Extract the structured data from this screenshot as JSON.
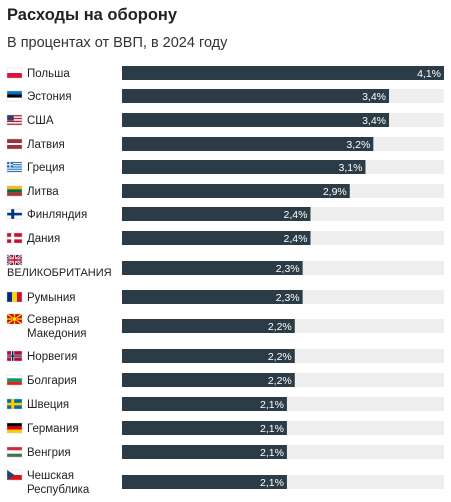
{
  "title": "Расходы на оборону",
  "subtitle": "В процентах от ВВП, в 2024 году",
  "chart_data": {
    "type": "bar",
    "orientation": "horizontal",
    "title": "Расходы на оборону",
    "subtitle": "В процентах от ВВП, в 2024 году",
    "xlim": [
      0,
      4.1
    ],
    "grid": false,
    "colors": {
      "bar": "#2b3c47",
      "track": "#eeeeee",
      "value_label": "#ffffff"
    },
    "categories": [
      "Польша",
      "Эстония",
      "США",
      "Латвия",
      "Греция",
      "Литва",
      "Финляндия",
      "Дания",
      "ВЕЛИКОБРИТАНИЯ",
      "Румыния",
      "Северная Македония",
      "Норвегия",
      "Болгария",
      "Швеция",
      "Германия",
      "Венгрия",
      "Чешская Республика"
    ],
    "values": [
      4.1,
      3.4,
      3.4,
      3.2,
      3.1,
      2.9,
      2.4,
      2.4,
      2.3,
      2.3,
      2.2,
      2.2,
      2.2,
      2.1,
      2.1,
      2.1,
      2.1
    ],
    "value_labels": [
      "4,1%",
      "3,4%",
      "3,4%",
      "3,2%",
      "3,1%",
      "2,9%",
      "2,4%",
      "2,4%",
      "2,3%",
      "2,3%",
      "2,2%",
      "2,2%",
      "2,2%",
      "2,1%",
      "2,1%",
      "2,1%",
      "2,1%"
    ],
    "label_lines": [
      [
        "Польша"
      ],
      [
        "Эстония"
      ],
      [
        "США"
      ],
      [
        "Латвия"
      ],
      [
        "Греция"
      ],
      [
        "Литва"
      ],
      [
        "Финляндия"
      ],
      [
        "Дания"
      ],
      [
        "ВЕЛИКОБРИТАНИЯ"
      ],
      [
        "Румыния"
      ],
      [
        "Северная",
        "Македония"
      ],
      [
        "Норвегия"
      ],
      [
        "Болгария"
      ],
      [
        "Швеция"
      ],
      [
        "Германия"
      ],
      [
        "Венгрия"
      ],
      [
        "Чешская",
        "Республика"
      ]
    ],
    "flags": [
      "poland-flag",
      "estonia-flag",
      "usa-flag",
      "latvia-flag",
      "greece-flag",
      "lithuania-flag",
      "finland-flag",
      "denmark-flag",
      "uk-flag",
      "romania-flag",
      "north-macedonia-flag",
      "norway-flag",
      "bulgaria-flag",
      "sweden-flag",
      "germany-flag",
      "hungary-flag",
      "czech-flag"
    ]
  }
}
